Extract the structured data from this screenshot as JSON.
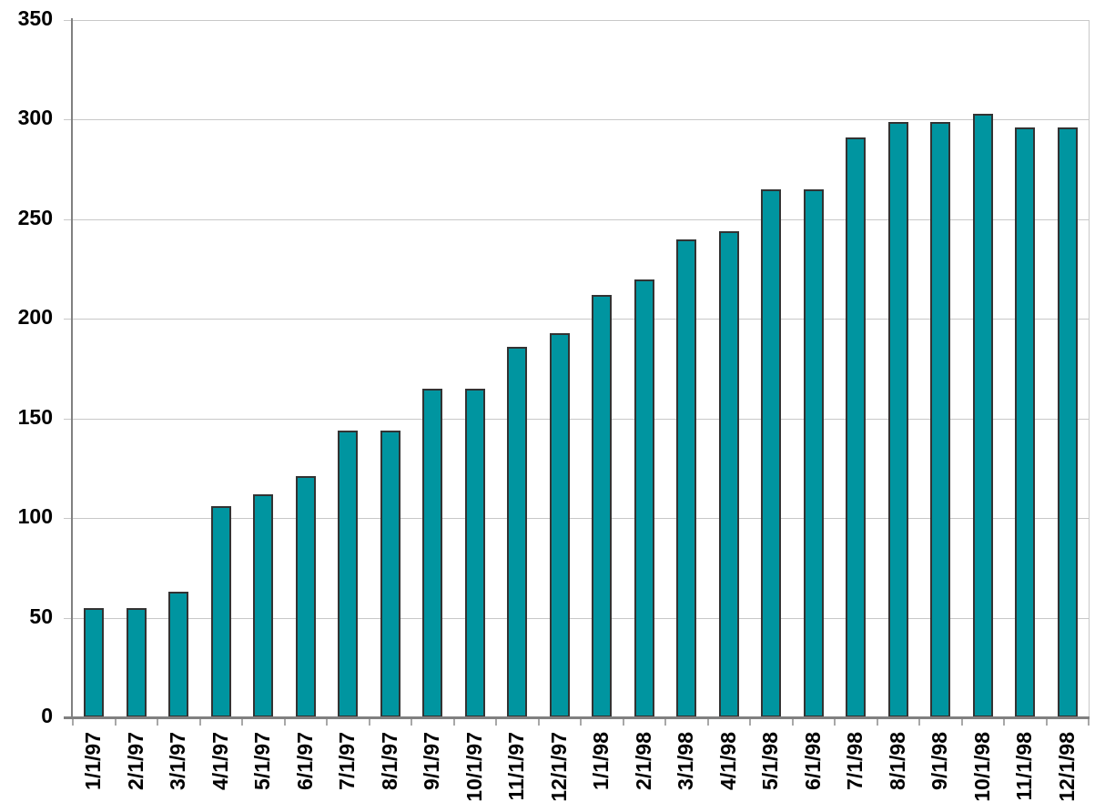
{
  "chart_data": {
    "type": "bar",
    "title": "",
    "xlabel": "",
    "ylabel": "",
    "categories": [
      "1/1/97",
      "2/1/97",
      "3/1/97",
      "4/1/97",
      "5/1/97",
      "6/1/97",
      "7/1/97",
      "8/1/97",
      "9/1/97",
      "10/1/97",
      "11/1/97",
      "12/1/97",
      "1/1/98",
      "2/1/98",
      "3/1/98",
      "4/1/98",
      "5/1/98",
      "6/1/98",
      "7/1/98",
      "8/1/98",
      "9/1/98",
      "10/1/98",
      "11/1/98",
      "12/1/98"
    ],
    "values": [
      55,
      55,
      63,
      106,
      112,
      121,
      144,
      144,
      165,
      165,
      186,
      193,
      212,
      220,
      240,
      244,
      265,
      265,
      291,
      299,
      299,
      303,
      296,
      296
    ],
    "ylim": [
      0,
      350
    ],
    "yticks": [
      0,
      50,
      100,
      150,
      200,
      250,
      300,
      350
    ],
    "grid": "horizontal",
    "legend": "none",
    "colors": {
      "bar_fill": "#0095A0",
      "bar_border": "#333333",
      "gridline": "#C8C8C8",
      "axis": "#808080",
      "tick": "#A8A8A8",
      "text": "#000000",
      "background": "#FFFFFF"
    }
  }
}
